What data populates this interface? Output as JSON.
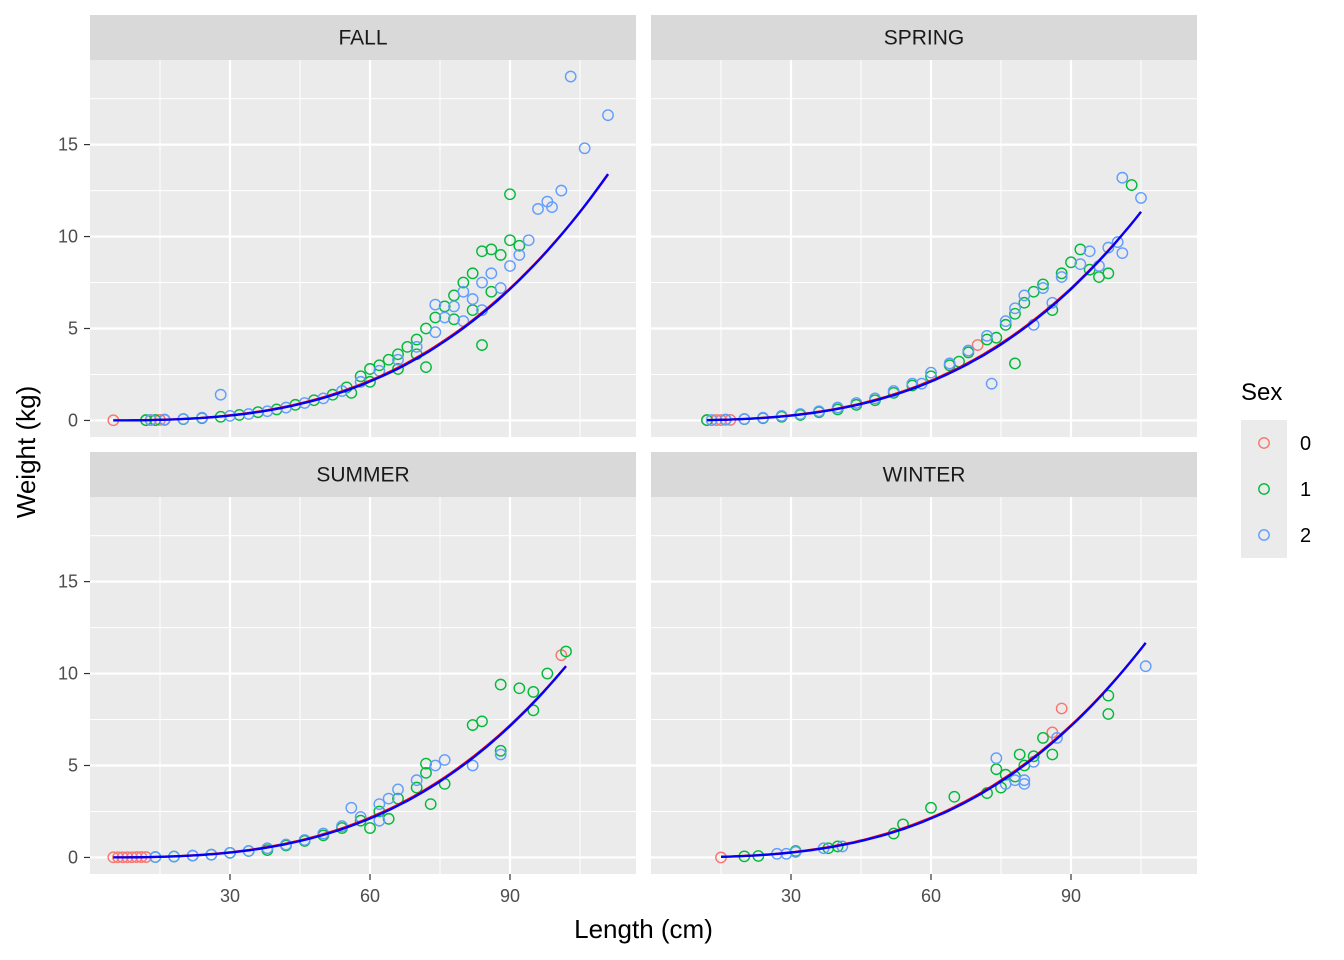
{
  "chart_data": {
    "type": "scatter",
    "layout": "facet_wrap 2x2",
    "xlabel": "Length (cm)",
    "ylabel": "Weight (kg)",
    "xlim": [
      0,
      117
    ],
    "ylim": [
      -0.9,
      19.6
    ],
    "x_ticks": [
      30,
      60,
      90
    ],
    "y_ticks": [
      0,
      5,
      10,
      15
    ],
    "grid": true,
    "legend": {
      "title": "Sex",
      "position": "right",
      "entries": [
        {
          "label": "0",
          "color": "#F8766D"
        },
        {
          "label": "1",
          "color": "#00BA38"
        },
        {
          "label": "2",
          "color": "#619CFF"
        }
      ]
    },
    "fit_lines": [
      {
        "color": "#FF0000"
      },
      {
        "color": "#0000FF"
      }
    ],
    "panels": [
      {
        "title": "FALL",
        "points": [
          [
            5,
            0.01,
            0
          ],
          [
            12,
            0.01,
            0
          ],
          [
            13,
            0.02,
            0
          ],
          [
            14,
            0.02,
            0
          ],
          [
            15,
            0.03,
            0
          ],
          [
            16,
            0.03,
            0
          ],
          [
            12,
            0.02,
            1
          ],
          [
            14,
            0.02,
            1
          ],
          [
            16,
            0.04,
            1
          ],
          [
            20,
            0.07,
            1
          ],
          [
            24,
            0.12,
            1
          ],
          [
            28,
            0.2,
            1
          ],
          [
            32,
            0.3,
            1
          ],
          [
            36,
            0.45,
            1
          ],
          [
            40,
            0.6,
            1
          ],
          [
            44,
            0.85,
            1
          ],
          [
            48,
            1.1,
            1
          ],
          [
            52,
            1.4,
            1
          ],
          [
            55,
            1.8,
            1
          ],
          [
            58,
            2.4,
            1
          ],
          [
            60,
            2.8,
            1
          ],
          [
            62,
            3.0,
            1
          ],
          [
            64,
            3.3,
            1
          ],
          [
            66,
            3.6,
            1
          ],
          [
            68,
            4.0,
            1
          ],
          [
            70,
            4.4,
            1
          ],
          [
            72,
            5.0,
            1
          ],
          [
            74,
            5.6,
            1
          ],
          [
            76,
            6.2,
            1
          ],
          [
            78,
            6.8,
            1
          ],
          [
            80,
            7.5,
            1
          ],
          [
            82,
            8.0,
            1
          ],
          [
            84,
            9.2,
            1
          ],
          [
            86,
            9.3,
            1
          ],
          [
            88,
            9.0,
            1
          ],
          [
            90,
            12.3,
            1
          ],
          [
            90,
            9.8,
            1
          ],
          [
            92,
            9.5,
            1
          ],
          [
            84,
            4.1,
            1
          ],
          [
            72,
            2.9,
            1
          ],
          [
            66,
            2.8,
            1
          ],
          [
            78,
            5.5,
            1
          ],
          [
            82,
            6.0,
            1
          ],
          [
            86,
            7.0,
            1
          ],
          [
            70,
            3.6,
            1
          ],
          [
            60,
            2.1,
            1
          ],
          [
            56,
            1.5,
            1
          ],
          [
            13,
            0.02,
            2
          ],
          [
            16,
            0.05,
            2
          ],
          [
            20,
            0.08,
            2
          ],
          [
            24,
            0.15,
            2
          ],
          [
            28,
            1.4,
            2
          ],
          [
            30,
            0.25,
            2
          ],
          [
            34,
            0.35,
            2
          ],
          [
            38,
            0.5,
            2
          ],
          [
            42,
            0.7,
            2
          ],
          [
            46,
            0.95,
            2
          ],
          [
            50,
            1.2,
            2
          ],
          [
            54,
            1.6,
            2
          ],
          [
            58,
            2.1,
            2
          ],
          [
            62,
            2.7,
            2
          ],
          [
            66,
            3.3,
            2
          ],
          [
            70,
            4.0,
            2
          ],
          [
            74,
            4.8,
            2
          ],
          [
            76,
            5.6,
            2
          ],
          [
            78,
            6.2,
            2
          ],
          [
            80,
            7.0,
            2
          ],
          [
            82,
            6.6,
            2
          ],
          [
            84,
            7.5,
            2
          ],
          [
            86,
            8.0,
            2
          ],
          [
            88,
            7.2,
            2
          ],
          [
            90,
            8.4,
            2
          ],
          [
            92,
            9.0,
            2
          ],
          [
            94,
            9.8,
            2
          ],
          [
            96,
            11.5,
            2
          ],
          [
            98,
            11.9,
            2
          ],
          [
            99,
            11.6,
            2
          ],
          [
            101,
            12.5,
            2
          ],
          [
            103,
            18.7,
            2
          ],
          [
            106,
            14.8,
            2
          ],
          [
            111,
            16.6,
            2
          ],
          [
            84,
            6.0,
            2
          ],
          [
            80,
            5.4,
            2
          ],
          [
            74,
            6.3,
            2
          ]
        ]
      },
      {
        "title": "SPRING",
        "points": [
          [
            12,
            0.01,
            0
          ],
          [
            14,
            0.02,
            0
          ],
          [
            15,
            0.02,
            0
          ],
          [
            17,
            0.03,
            0
          ],
          [
            70,
            4.1,
            0
          ],
          [
            12,
            0.02,
            1
          ],
          [
            16,
            0.04,
            1
          ],
          [
            20,
            0.07,
            1
          ],
          [
            24,
            0.12,
            1
          ],
          [
            28,
            0.2,
            1
          ],
          [
            32,
            0.3,
            1
          ],
          [
            36,
            0.45,
            1
          ],
          [
            40,
            0.6,
            1
          ],
          [
            44,
            0.85,
            1
          ],
          [
            48,
            1.1,
            1
          ],
          [
            52,
            1.5,
            1
          ],
          [
            56,
            1.9,
            1
          ],
          [
            60,
            2.4,
            1
          ],
          [
            64,
            3.0,
            1
          ],
          [
            68,
            3.7,
            1
          ],
          [
            72,
            4.4,
            1
          ],
          [
            76,
            5.2,
            1
          ],
          [
            78,
            5.8,
            1
          ],
          [
            80,
            6.4,
            1
          ],
          [
            82,
            7.0,
            1
          ],
          [
            84,
            7.4,
            1
          ],
          [
            86,
            6.0,
            1
          ],
          [
            88,
            8.0,
            1
          ],
          [
            90,
            8.6,
            1
          ],
          [
            92,
            9.3,
            1
          ],
          [
            94,
            8.2,
            1
          ],
          [
            96,
            7.8,
            1
          ],
          [
            98,
            8.0,
            1
          ],
          [
            103,
            12.8,
            1
          ],
          [
            78,
            3.1,
            1
          ],
          [
            74,
            4.5,
            1
          ],
          [
            66,
            3.2,
            1
          ],
          [
            13,
            0.02,
            2
          ],
          [
            16,
            0.05,
            2
          ],
          [
            20,
            0.08,
            2
          ],
          [
            24,
            0.15,
            2
          ],
          [
            28,
            0.25,
            2
          ],
          [
            32,
            0.35,
            2
          ],
          [
            36,
            0.5,
            2
          ],
          [
            40,
            0.7,
            2
          ],
          [
            44,
            0.95,
            2
          ],
          [
            48,
            1.2,
            2
          ],
          [
            52,
            1.6,
            2
          ],
          [
            56,
            2.0,
            2
          ],
          [
            60,
            2.6,
            2
          ],
          [
            64,
            3.1,
            2
          ],
          [
            68,
            3.8,
            2
          ],
          [
            72,
            4.6,
            2
          ],
          [
            73,
            2.0,
            2
          ],
          [
            76,
            5.4,
            2
          ],
          [
            78,
            6.1,
            2
          ],
          [
            80,
            6.8,
            2
          ],
          [
            84,
            7.2,
            2
          ],
          [
            86,
            6.4,
            2
          ],
          [
            88,
            7.8,
            2
          ],
          [
            92,
            8.5,
            2
          ],
          [
            94,
            9.2,
            2
          ],
          [
            96,
            8.4,
            2
          ],
          [
            98,
            9.4,
            2
          ],
          [
            100,
            9.7,
            2
          ],
          [
            101,
            13.2,
            2
          ],
          [
            101,
            9.1,
            2
          ],
          [
            105,
            12.1,
            2
          ],
          [
            82,
            5.2,
            2
          ],
          [
            58,
            2.0,
            2
          ]
        ]
      },
      {
        "title": "SUMMER",
        "points": [
          [
            5,
            0.01,
            0
          ],
          [
            6,
            0.01,
            0
          ],
          [
            7,
            0.01,
            0
          ],
          [
            8,
            0.01,
            0
          ],
          [
            9,
            0.01,
            0
          ],
          [
            10,
            0.02,
            0
          ],
          [
            11,
            0.02,
            0
          ],
          [
            12,
            0.02,
            0
          ],
          [
            101,
            11.0,
            0
          ],
          [
            14,
            0.02,
            1
          ],
          [
            18,
            0.05,
            1
          ],
          [
            22,
            0.1,
            1
          ],
          [
            26,
            0.15,
            1
          ],
          [
            30,
            0.25,
            1
          ],
          [
            34,
            0.35,
            1
          ],
          [
            38,
            0.4,
            1
          ],
          [
            42,
            0.65,
            1
          ],
          [
            46,
            0.9,
            1
          ],
          [
            50,
            1.2,
            1
          ],
          [
            54,
            1.6,
            1
          ],
          [
            58,
            2.0,
            1
          ],
          [
            62,
            2.5,
            1
          ],
          [
            66,
            3.2,
            1
          ],
          [
            70,
            3.8,
            1
          ],
          [
            72,
            4.6,
            1
          ],
          [
            72,
            5.1,
            1
          ],
          [
            73,
            2.9,
            1
          ],
          [
            76,
            4.0,
            1
          ],
          [
            82,
            7.2,
            1
          ],
          [
            84,
            7.4,
            1
          ],
          [
            88,
            9.4,
            1
          ],
          [
            88,
            5.8,
            1
          ],
          [
            92,
            9.2,
            1
          ],
          [
            95,
            9.0,
            1
          ],
          [
            95,
            8.0,
            1
          ],
          [
            98,
            10.0,
            1
          ],
          [
            102,
            11.2,
            1
          ],
          [
            64,
            2.1,
            1
          ],
          [
            60,
            1.6,
            1
          ],
          [
            14,
            0.02,
            2
          ],
          [
            18,
            0.05,
            2
          ],
          [
            22,
            0.1,
            2
          ],
          [
            26,
            0.15,
            2
          ],
          [
            30,
            0.25,
            2
          ],
          [
            34,
            0.35,
            2
          ],
          [
            38,
            0.5,
            2
          ],
          [
            42,
            0.7,
            2
          ],
          [
            46,
            0.95,
            2
          ],
          [
            50,
            1.3,
            2
          ],
          [
            54,
            1.7,
            2
          ],
          [
            58,
            2.2,
            2
          ],
          [
            62,
            2.9,
            2
          ],
          [
            64,
            3.2,
            2
          ],
          [
            66,
            3.7,
            2
          ],
          [
            70,
            4.2,
            2
          ],
          [
            74,
            5.0,
            2
          ],
          [
            76,
            5.3,
            2
          ],
          [
            82,
            5.0,
            2
          ],
          [
            88,
            5.6,
            2
          ],
          [
            56,
            2.7,
            2
          ],
          [
            62,
            2.0,
            2
          ]
        ]
      },
      {
        "title": "WINTER",
        "points": [
          [
            15,
            0.0,
            0
          ],
          [
            88,
            8.1,
            0
          ],
          [
            86,
            6.8,
            0
          ],
          [
            20,
            0.06,
            1
          ],
          [
            23,
            0.08,
            1
          ],
          [
            31,
            0.35,
            1
          ],
          [
            38,
            0.5,
            1
          ],
          [
            40,
            0.6,
            1
          ],
          [
            52,
            1.3,
            1
          ],
          [
            54,
            1.8,
            1
          ],
          [
            60,
            2.7,
            1
          ],
          [
            65,
            3.3,
            1
          ],
          [
            72,
            3.5,
            1
          ],
          [
            74,
            4.8,
            1
          ],
          [
            75,
            3.8,
            1
          ],
          [
            76,
            4.5,
            1
          ],
          [
            78,
            4.4,
            1
          ],
          [
            79,
            5.6,
            1
          ],
          [
            80,
            5.0,
            1
          ],
          [
            82,
            5.5,
            1
          ],
          [
            84,
            6.5,
            1
          ],
          [
            86,
            5.6,
            1
          ],
          [
            98,
            8.8,
            1
          ],
          [
            98,
            7.8,
            1
          ],
          [
            27,
            0.2,
            2
          ],
          [
            29,
            0.2,
            2
          ],
          [
            31,
            0.3,
            2
          ],
          [
            37,
            0.5,
            2
          ],
          [
            41,
            0.6,
            2
          ],
          [
            74,
            5.4,
            2
          ],
          [
            76,
            4.0,
            2
          ],
          [
            78,
            4.2,
            2
          ],
          [
            80,
            4.2,
            2
          ],
          [
            80,
            4.0,
            2
          ],
          [
            82,
            5.2,
            2
          ],
          [
            87,
            6.5,
            2
          ],
          [
            106,
            10.4,
            2
          ]
        ]
      }
    ]
  }
}
